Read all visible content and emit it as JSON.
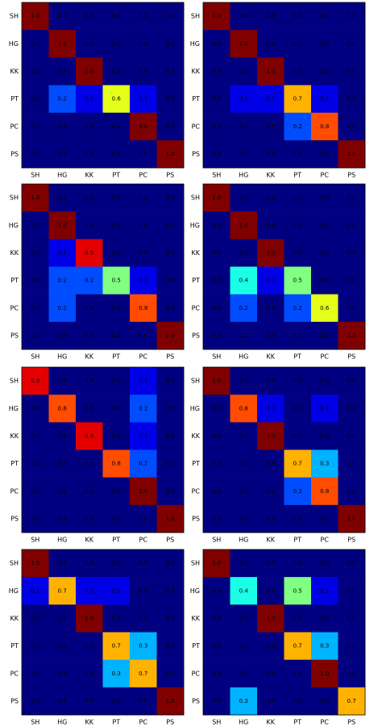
{
  "chart_data": [
    {
      "type": "heatmap",
      "colormap": "jet",
      "zlim": [
        0,
        1
      ],
      "x_categories": [
        "SH",
        "HG",
        "KK",
        "PT",
        "PC",
        "PS"
      ],
      "y_categories": [
        "SH",
        "HG",
        "KK",
        "PT",
        "PC",
        "PS"
      ],
      "values": [
        [
          1.0,
          0,
          0,
          0,
          0,
          0
        ],
        [
          0,
          1.0,
          0,
          0,
          0,
          0
        ],
        [
          0,
          0,
          1.0,
          0,
          0,
          0
        ],
        [
          0,
          0.2,
          0.1,
          0.6,
          0.1,
          0
        ],
        [
          0,
          0,
          0,
          0,
          1.0,
          0
        ],
        [
          0,
          0,
          0,
          0,
          0,
          1.0
        ]
      ],
      "value_labels": [
        [
          "1.0",
          "0.0",
          "0.0",
          "0.0",
          "0.0",
          "0.0"
        ],
        [
          "0.0",
          "1.0",
          "0.0",
          "0.0",
          "0.0",
          "0.0"
        ],
        [
          "0.0",
          "0.0",
          "1.0",
          "0.0",
          "0.0",
          "0.0"
        ],
        [
          "0.0",
          "0.2",
          "0.1",
          "0.6",
          "0.1",
          "0.0"
        ],
        [
          "0.0",
          "0.0",
          "0.0",
          "0.0",
          "1.0",
          "0.0"
        ],
        [
          "0.0",
          "0.0",
          "0.0",
          "0.0",
          "0.0",
          "1.0"
        ]
      ]
    },
    {
      "type": "heatmap",
      "colormap": "jet",
      "zlim": [
        0,
        1
      ],
      "x_categories": [
        "SH",
        "HG",
        "KK",
        "PT",
        "PC",
        "PS"
      ],
      "y_categories": [
        "SH",
        "HG",
        "KK",
        "PT",
        "PC",
        "PS"
      ],
      "values": [
        [
          1.0,
          0,
          0,
          0,
          0,
          0
        ],
        [
          0,
          1.0,
          0,
          0,
          0,
          0
        ],
        [
          0,
          0,
          1.0,
          0,
          0,
          0
        ],
        [
          0,
          0.1,
          0.1,
          0.7,
          0.1,
          0
        ],
        [
          0,
          0,
          0,
          0.2,
          0.8,
          0
        ],
        [
          0,
          0,
          0,
          0,
          0,
          1.0
        ]
      ],
      "value_labels": [
        [
          "1.0",
          "0.0",
          "0.0",
          "0.0",
          "0.0",
          "0.0"
        ],
        [
          "0.0",
          "1.0",
          "0.0",
          "0.0",
          "0.0",
          "0.0"
        ],
        [
          "0.0",
          "0.0",
          "1.0",
          "0.0",
          "0.0",
          "0.0"
        ],
        [
          "0.0",
          "0.1",
          "0.1",
          "0.7",
          "0.1",
          "0.0"
        ],
        [
          "0.0",
          "0.0",
          "0.0",
          "0.2",
          "0.8",
          "0.0"
        ],
        [
          "0.0",
          "0.0",
          "0.0",
          "0.0",
          "0.0",
          "1.0"
        ]
      ]
    },
    {
      "type": "heatmap",
      "colormap": "jet",
      "zlim": [
        0,
        1
      ],
      "x_categories": [
        "SH",
        "HG",
        "KK",
        "PT",
        "PC",
        "PS"
      ],
      "y_categories": [
        "SH",
        "HG",
        "KK",
        "PT",
        "PC",
        "PS"
      ],
      "values": [
        [
          1.0,
          0,
          0,
          0,
          0,
          0
        ],
        [
          0,
          1.0,
          0,
          0,
          0,
          0
        ],
        [
          0,
          0.1,
          0.9,
          0,
          0,
          0
        ],
        [
          0,
          0.2,
          0.2,
          0.5,
          0.1,
          0
        ],
        [
          0,
          0.2,
          0,
          0,
          0.8,
          0
        ],
        [
          0,
          0,
          0,
          0,
          0,
          1.0
        ]
      ],
      "value_labels": [
        [
          "1.0",
          "0.0",
          "0.0",
          "0.0",
          "0.0",
          "0.0"
        ],
        [
          "0.0",
          "1.0",
          "0.0",
          "0.0",
          "0.0",
          "0.0"
        ],
        [
          "0.0",
          "0.1",
          "0.9",
          "0.0",
          "0.0",
          "0.0"
        ],
        [
          "0.0",
          "0.2",
          "0.2",
          "0.5",
          "0.1",
          "0.0"
        ],
        [
          "0.0",
          "0.2",
          "0.0",
          "0.0",
          "0.8",
          "0.0"
        ],
        [
          "0.0",
          "0.0",
          "0.0",
          "0.0",
          "0.0",
          "1.0"
        ]
      ]
    },
    {
      "type": "heatmap",
      "colormap": "jet",
      "zlim": [
        0,
        1
      ],
      "x_categories": [
        "SH",
        "HG",
        "KK",
        "PT",
        "PC",
        "PS"
      ],
      "y_categories": [
        "SH",
        "HG",
        "KK",
        "PT",
        "PC",
        "PS"
      ],
      "values": [
        [
          1.0,
          0,
          0,
          0,
          0,
          0
        ],
        [
          0,
          1.0,
          0,
          0,
          0,
          0
        ],
        [
          0,
          0,
          1.0,
          0,
          0,
          0
        ],
        [
          0,
          0.4,
          0.1,
          0.5,
          0,
          0
        ],
        [
          0,
          0.2,
          0,
          0.2,
          0.6,
          0
        ],
        [
          0,
          0,
          0,
          0,
          0,
          1.0
        ]
      ],
      "value_labels": [
        [
          "1.0",
          "0.0",
          "0.0",
          "0.0",
          "0.0",
          "0.0"
        ],
        [
          "0.0",
          "1.0",
          "0.0",
          "0.0",
          "0.0",
          "0.0"
        ],
        [
          "0.0",
          "0.0",
          "1.0",
          "0.0",
          "0.0",
          "0.0"
        ],
        [
          "0.0",
          "0.4",
          "0.1",
          "0.5",
          "0.0",
          "0.0"
        ],
        [
          "0.0",
          "0.2",
          "0.0",
          "0.2",
          "0.6",
          "0.0"
        ],
        [
          "0.0",
          "0.0",
          "0.0",
          "0.0",
          "0.0",
          "1.0"
        ]
      ]
    },
    {
      "type": "heatmap",
      "colormap": "jet",
      "zlim": [
        0,
        1
      ],
      "x_categories": [
        "SH",
        "HG",
        "KK",
        "PT",
        "PC",
        "PS"
      ],
      "y_categories": [
        "SH",
        "HG",
        "KK",
        "PT",
        "PC",
        "PS"
      ],
      "values": [
        [
          0.9,
          0,
          0,
          0,
          0.1,
          0
        ],
        [
          0,
          0.8,
          0,
          0,
          0.2,
          0
        ],
        [
          0,
          0,
          0.9,
          0,
          0.1,
          0
        ],
        [
          0,
          0,
          0,
          0.8,
          0.2,
          0
        ],
        [
          0,
          0,
          0,
          0,
          1.0,
          0
        ],
        [
          0,
          0,
          0,
          0,
          0,
          1.0
        ]
      ],
      "value_labels": [
        [
          "0.9",
          "0.0",
          "0.0",
          "0.0",
          "0.1",
          "0.0"
        ],
        [
          "0.0",
          "0.8",
          "0.0",
          "0.0",
          "0.2",
          "0.0"
        ],
        [
          "0.0",
          "0.0",
          "0.9",
          "0.0",
          "0.1",
          "0.0"
        ],
        [
          "0.0",
          "0.0",
          "0.0",
          "0.8",
          "0.2",
          "0.0"
        ],
        [
          "0.0",
          "0.0",
          "0.0",
          "0.0",
          "1.0",
          "0.0"
        ],
        [
          "0.0",
          "0.0",
          "0.0",
          "0.0",
          "0.0",
          "1.0"
        ]
      ]
    },
    {
      "type": "heatmap",
      "colormap": "jet",
      "zlim": [
        0,
        1
      ],
      "x_categories": [
        "SH",
        "HG",
        "KK",
        "PT",
        "PC",
        "PS"
      ],
      "y_categories": [
        "SH",
        "HG",
        "KK",
        "PT",
        "PC",
        "PS"
      ],
      "values": [
        [
          1.0,
          0,
          0,
          0,
          0,
          0
        ],
        [
          0,
          0.8,
          0.1,
          0,
          0.1,
          0
        ],
        [
          0,
          0,
          1.0,
          0,
          0,
          0
        ],
        [
          0,
          0,
          0,
          0.7,
          0.3,
          0
        ],
        [
          0,
          0,
          0,
          0.2,
          0.8,
          0
        ],
        [
          0,
          0,
          0,
          0,
          0,
          1.0
        ]
      ],
      "value_labels": [
        [
          "1.0",
          "0.0",
          "0.0",
          "0.0",
          "0.0",
          "0.0"
        ],
        [
          "0.0",
          "0.8",
          "0.1",
          "0.0",
          "0.1",
          "0.0"
        ],
        [
          "0.0",
          "0.0",
          "1.0",
          "0.0",
          "0.0",
          "0.0"
        ],
        [
          "0.0",
          "0.0",
          "0.0",
          "0.7",
          "0.3",
          "0.0"
        ],
        [
          "0.0",
          "0.0",
          "0.0",
          "0.2",
          "0.8",
          "0.0"
        ],
        [
          "0.0",
          "0.0",
          "0.0",
          "0.0",
          "0.0",
          "1.0"
        ]
      ]
    },
    {
      "type": "heatmap",
      "colormap": "jet",
      "zlim": [
        0,
        1
      ],
      "x_categories": [
        "SH",
        "HG",
        "KK",
        "PT",
        "PC",
        "PS"
      ],
      "y_categories": [
        "SH",
        "HG",
        "KK",
        "PT",
        "PC",
        "PS"
      ],
      "values": [
        [
          1.0,
          0,
          0,
          0,
          0,
          0
        ],
        [
          0.1,
          0.7,
          0.1,
          0.1,
          0,
          0
        ],
        [
          0,
          0,
          1.0,
          0,
          0,
          0
        ],
        [
          0,
          0,
          0,
          0.7,
          0.3,
          0
        ],
        [
          0,
          0,
          0,
          0.3,
          0.7,
          0
        ],
        [
          0,
          0,
          0,
          0,
          0,
          1.0
        ]
      ],
      "value_labels": [
        [
          "1.0",
          "0.0",
          "0.0",
          "0.0",
          "0.0",
          "0.0"
        ],
        [
          "0.1",
          "0.7",
          "0.1",
          "0.1",
          "0.0",
          "0.0"
        ],
        [
          "0.0",
          "0.0",
          "1.0",
          "0.0",
          "0.0",
          "0.0"
        ],
        [
          "0.0",
          "0.0",
          "0.0",
          "0.7",
          "0.3",
          "0.0"
        ],
        [
          "0.0",
          "0.0",
          "0.0",
          "0.3",
          "0.7",
          "0.0"
        ],
        [
          "0.0",
          "0.0",
          "0.0",
          "0.0",
          "0.0",
          "1.0"
        ]
      ]
    },
    {
      "type": "heatmap",
      "colormap": "jet",
      "zlim": [
        0,
        1
      ],
      "x_categories": [
        "SH",
        "HG",
        "KK",
        "PT",
        "PC",
        "PS"
      ],
      "y_categories": [
        "SH",
        "HG",
        "KK",
        "PT",
        "PC",
        "PS"
      ],
      "values": [
        [
          1.0,
          0,
          0,
          0,
          0,
          0
        ],
        [
          0,
          0.4,
          0,
          0.5,
          0.1,
          0
        ],
        [
          0,
          0,
          1.0,
          0,
          0,
          0
        ],
        [
          0,
          0,
          0,
          0.7,
          0.3,
          0
        ],
        [
          0,
          0,
          0,
          0,
          1.0,
          0
        ],
        [
          0,
          0.3,
          0,
          0,
          0,
          0.7
        ]
      ],
      "value_labels": [
        [
          "1.0",
          "0.0",
          "0.0",
          "0.0",
          "0.0",
          "0.0"
        ],
        [
          "0.0",
          "0.4",
          "0.0",
          "0.5",
          "0.1",
          "0.0"
        ],
        [
          "0.0",
          "0.0",
          "1.0",
          "0.0",
          "0.0",
          "0.0"
        ],
        [
          "0.0",
          "0.0",
          "0.0",
          "0.7",
          "0.3",
          "0.0"
        ],
        [
          "0.0",
          "0.0",
          "0.0",
          "0.0",
          "1.0",
          "0.0"
        ],
        [
          "0.0",
          "0.3",
          "0.0",
          "0.0",
          "0.0",
          "0.7"
        ]
      ]
    }
  ]
}
